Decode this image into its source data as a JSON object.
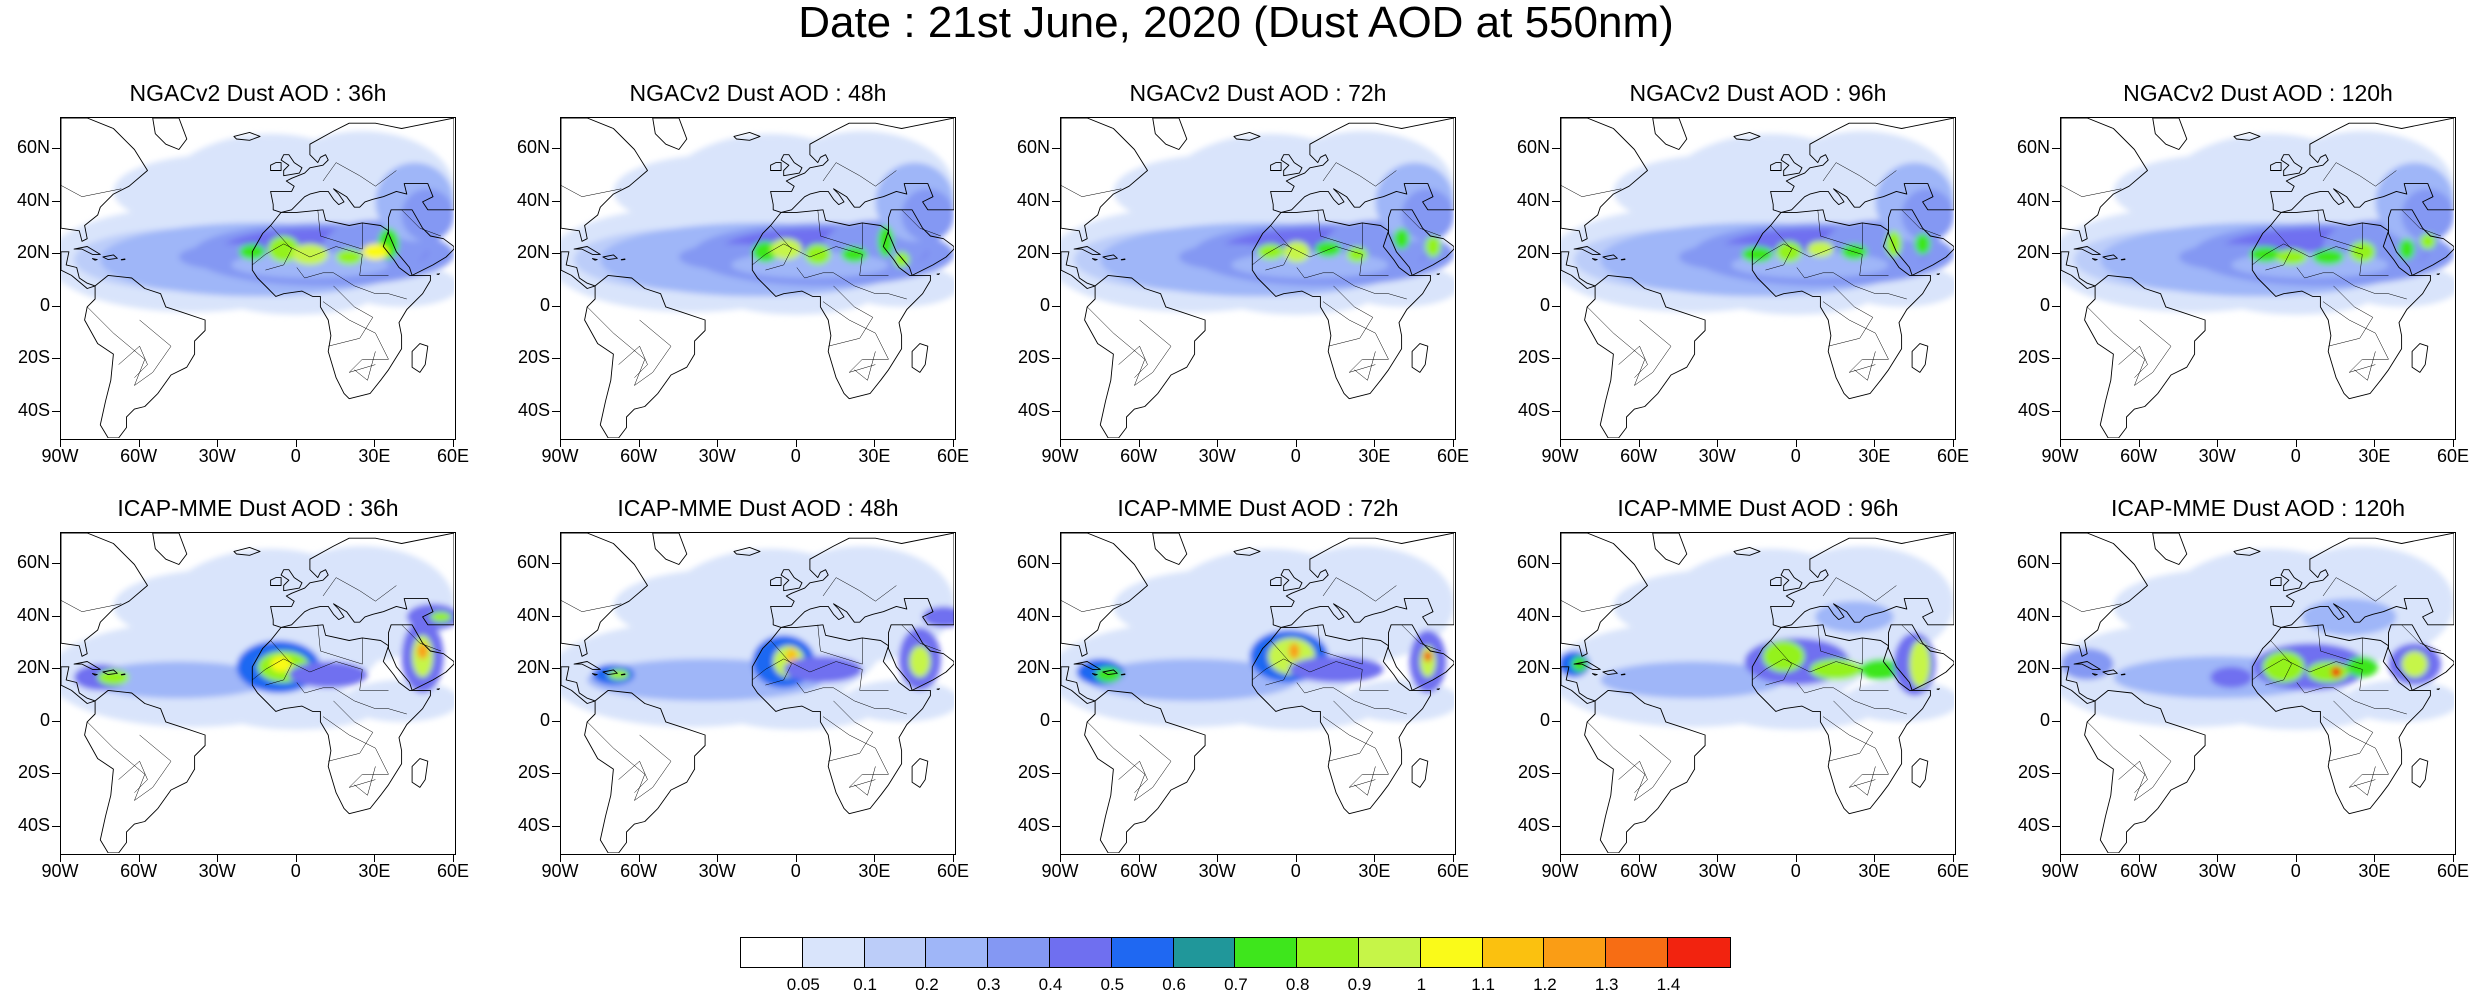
{
  "figure": {
    "title": "Date : 21st June, 2020 (Dust AOD at 550nm)"
  },
  "axes": {
    "lat_labels": [
      "60N",
      "40N",
      "20N",
      "0",
      "20S",
      "40S"
    ],
    "lon_labels": [
      "90W",
      "60W",
      "30W",
      "0",
      "30E",
      "60E"
    ]
  },
  "panels": [
    {
      "title": "NGACv2 Dust AOD : 36h",
      "model": "ngac",
      "lead_hours": 36
    },
    {
      "title": "NGACv2 Dust AOD : 48h",
      "model": "ngac",
      "lead_hours": 48
    },
    {
      "title": "NGACv2 Dust AOD : 72h",
      "model": "ngac",
      "lead_hours": 72
    },
    {
      "title": "NGACv2 Dust AOD : 96h",
      "model": "ngac",
      "lead_hours": 96
    },
    {
      "title": "NGACv2 Dust AOD : 120h",
      "model": "ngac",
      "lead_hours": 120
    },
    {
      "title": "ICAP-MME Dust AOD : 36h",
      "model": "icap",
      "lead_hours": 36
    },
    {
      "title": "ICAP-MME Dust AOD : 48h",
      "model": "icap",
      "lead_hours": 48
    },
    {
      "title": "ICAP-MME Dust AOD : 72h",
      "model": "icap",
      "lead_hours": 72
    },
    {
      "title": "ICAP-MME Dust AOD : 96h",
      "model": "icap",
      "lead_hours": 96
    },
    {
      "title": "ICAP-MME Dust AOD : 120h",
      "model": "icap",
      "lead_hours": 120
    }
  ],
  "colorbar": {
    "labels": [
      "0.05",
      "0.1",
      "0.2",
      "0.3",
      "0.4",
      "0.5",
      "0.6",
      "0.7",
      "0.8",
      "0.9",
      "1",
      "1.1",
      "1.2",
      "1.3",
      "1.4"
    ],
    "colors": [
      "#ffffff",
      "#d9e4fb",
      "#bccdf9",
      "#9fb6f8",
      "#8498f3",
      "#6f6ff0",
      "#1f68f2",
      "#20979a",
      "#3ee61c",
      "#94f21c",
      "#c6f548",
      "#fafa19",
      "#fbc10f",
      "#fa9d15",
      "#f76d14",
      "#f2230f"
    ]
  }
}
